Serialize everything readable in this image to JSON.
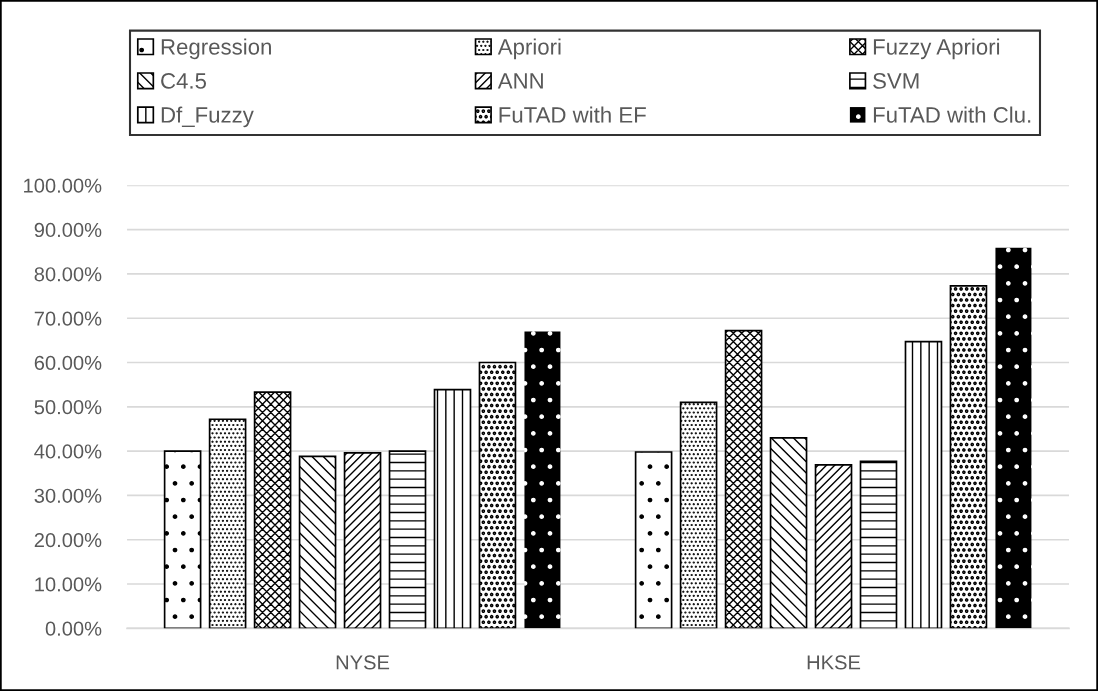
{
  "chart_data": {
    "type": "bar",
    "categories": [
      "NYSE",
      "HKSE"
    ],
    "series": [
      {
        "name": "Regression",
        "color": "#000000",
        "values": [
          40.0,
          39.8
        ]
      },
      {
        "name": "Apriori",
        "color": "#000000",
        "values": [
          47.2,
          51.0
        ]
      },
      {
        "name": "Fuzzy Apriori",
        "color": "#000000",
        "values": [
          53.3,
          67.2
        ]
      },
      {
        "name": "C4.5",
        "color": "#000000",
        "values": [
          38.8,
          43.0
        ]
      },
      {
        "name": "ANN",
        "color": "#000000",
        "values": [
          39.6,
          36.9
        ]
      },
      {
        "name": "SVM",
        "color": "#000000",
        "values": [
          40.0,
          37.7
        ]
      },
      {
        "name": "Df_Fuzzy",
        "color": "#000000",
        "values": [
          53.9,
          64.7
        ]
      },
      {
        "name": "FuTAD with EF",
        "color": "#000000",
        "values": [
          60.0,
          77.3
        ]
      },
      {
        "name": "FuTAD with Clu.",
        "color": "#000000",
        "values": [
          67.0,
          85.9
        ]
      }
    ],
    "ylim": [
      0,
      100
    ],
    "yticks": [
      {
        "value": 0,
        "label": "0.00%"
      },
      {
        "value": 10,
        "label": "10.00%"
      },
      {
        "value": 20,
        "label": "20.00%"
      },
      {
        "value": 30,
        "label": "30.00%"
      },
      {
        "value": 40,
        "label": "40.00%"
      },
      {
        "value": 50,
        "label": "50.00%"
      },
      {
        "value": 60,
        "label": "60.00%"
      },
      {
        "value": 70,
        "label": "70.00%"
      },
      {
        "value": 80,
        "label": "80.00%"
      },
      {
        "value": 90,
        "label": "90.00%"
      },
      {
        "value": 100,
        "label": "100.00%"
      }
    ],
    "grid": "y",
    "legend": "top"
  }
}
